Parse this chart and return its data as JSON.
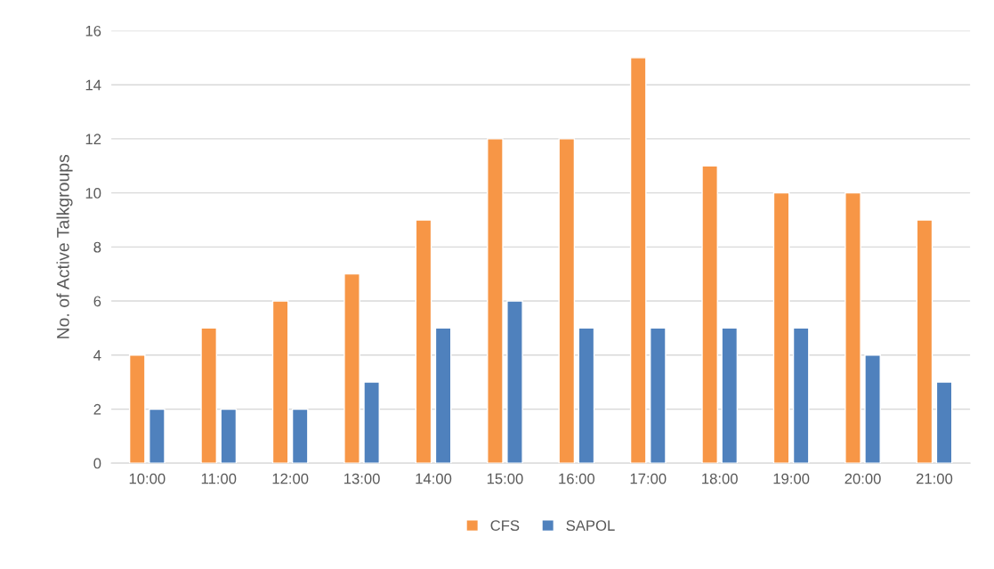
{
  "chart_data": {
    "type": "bar",
    "ylabel": "No. of Active Talkgroups",
    "categories": [
      "10:00",
      "11:00",
      "12:00",
      "13:00",
      "14:00",
      "15:00",
      "16:00",
      "17:00",
      "18:00",
      "19:00",
      "20:00",
      "21:00"
    ],
    "series": [
      {
        "name": "CFS",
        "color": "#f79646",
        "values": [
          4,
          5,
          6,
          7,
          9,
          12,
          12,
          15,
          11,
          10,
          10,
          9
        ]
      },
      {
        "name": "SAPOL",
        "color": "#4f81bd",
        "values": [
          2,
          2,
          2,
          3,
          5,
          6,
          5,
          5,
          5,
          5,
          4,
          3
        ]
      }
    ],
    "ylim": [
      0,
      16
    ],
    "yticks": [
      0,
      2,
      4,
      6,
      8,
      10,
      12,
      14,
      16
    ],
    "grid": "y",
    "legend": "bottom"
  }
}
